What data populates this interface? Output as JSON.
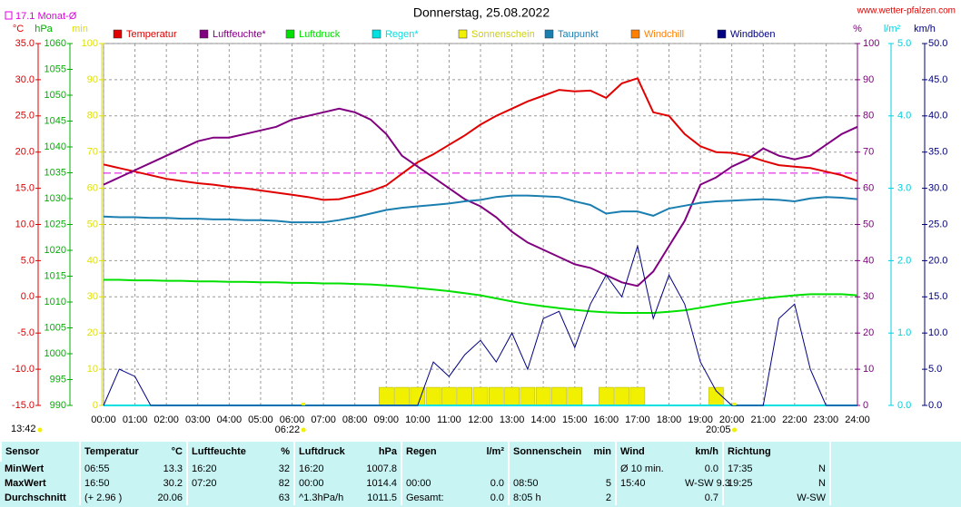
{
  "chart_data": {
    "type": "line",
    "title": "Donnerstag, 25.08.2022",
    "source": "www.wetter-pfalzen.com",
    "monthly_average": {
      "value": 17.1,
      "label": "17.1 Monat-Ø",
      "axis": "temp",
      "color": "#e000e0"
    },
    "sun_times": {
      "day_length": "13:42",
      "sunrise": "06:22",
      "sunset": "20:05"
    },
    "grid": true,
    "axes": {
      "temp": {
        "unit": "°C",
        "color": "#e00000",
        "lim": [
          -15,
          35
        ],
        "ticks": [
          {
            "value": 35,
            "label": "35.0"
          },
          {
            "value": 30,
            "label": "30.0"
          },
          {
            "value": 25,
            "label": "25.0"
          },
          {
            "value": 20,
            "label": "20.0"
          },
          {
            "value": 15,
            "label": "15.0"
          },
          {
            "value": 10,
            "label": "10.0"
          },
          {
            "value": 5,
            "label": "5.0"
          },
          {
            "value": 0,
            "label": "0.0"
          },
          {
            "value": -5,
            "label": "-5.0"
          },
          {
            "value": -10,
            "label": "-10.0"
          },
          {
            "value": -15,
            "label": "-15.0"
          }
        ]
      },
      "press": {
        "unit": "hPa",
        "color": "#00b000",
        "lim": [
          990,
          1060
        ],
        "ticks": [
          1060,
          1055,
          1050,
          1045,
          1040,
          1035,
          1030,
          1025,
          1020,
          1015,
          1010,
          1005,
          1000,
          995,
          990
        ]
      },
      "min": {
        "unit": "min",
        "color": "#e0e000",
        "lim": [
          0,
          100
        ],
        "ticks": [
          100,
          90,
          80,
          70,
          60,
          50,
          40,
          30,
          20,
          10,
          0
        ]
      },
      "hum": {
        "unit": "%",
        "color": "#800080",
        "lim": [
          0,
          100
        ],
        "ticks": [
          100,
          90,
          80,
          70,
          60,
          50,
          40,
          30,
          20,
          10,
          0
        ]
      },
      "rain": {
        "unit": "l/m²",
        "color": "#00d0e0",
        "lim": [
          0,
          5
        ],
        "ticks": [
          {
            "value": 5,
            "label": "5.0"
          },
          {
            "value": 4,
            "label": "4.0"
          },
          {
            "value": 3,
            "label": "3.0"
          },
          {
            "value": 2,
            "label": "2.0"
          },
          {
            "value": 1,
            "label": "1.0"
          },
          {
            "value": 0,
            "label": "0.0"
          }
        ]
      },
      "wind": {
        "unit": "km/h",
        "color": "#000080",
        "lim": [
          0,
          50
        ],
        "ticks": [
          {
            "value": 50,
            "label": "50.0"
          },
          {
            "value": 45,
            "label": "45.0"
          },
          {
            "value": 40,
            "label": "40.0"
          },
          {
            "value": 35,
            "label": "35.0"
          },
          {
            "value": 30,
            "label": "30.0"
          },
          {
            "value": 25,
            "label": "25.0"
          },
          {
            "value": 20,
            "label": "20.0"
          },
          {
            "value": 15,
            "label": "15.0"
          },
          {
            "value": 10,
            "label": "10.0"
          },
          {
            "value": 5,
            "label": "5.0"
          },
          {
            "value": 0,
            "label": "0.0"
          }
        ]
      }
    },
    "xlim": [
      "00:00",
      "24:00"
    ],
    "xticks": [
      "00:00",
      "01:00",
      "02:00",
      "03:00",
      "04:00",
      "05:00",
      "06:00",
      "07:00",
      "08:00",
      "09:00",
      "10:00",
      "11:00",
      "12:00",
      "13:00",
      "14:00",
      "15:00",
      "16:00",
      "17:00",
      "18:00",
      "19:00",
      "20:00",
      "21:00",
      "22:00",
      "23:00",
      "24:00"
    ],
    "x": [
      "00:00",
      "00:30",
      "01:00",
      "01:30",
      "02:00",
      "02:30",
      "03:00",
      "03:30",
      "04:00",
      "04:30",
      "05:00",
      "05:30",
      "06:00",
      "06:30",
      "07:00",
      "07:30",
      "08:00",
      "08:30",
      "09:00",
      "09:30",
      "10:00",
      "10:30",
      "11:00",
      "11:30",
      "12:00",
      "12:30",
      "13:00",
      "13:30",
      "14:00",
      "14:30",
      "15:00",
      "15:30",
      "16:00",
      "16:30",
      "17:00",
      "17:30",
      "18:00",
      "18:30",
      "19:00",
      "19:30",
      "20:00",
      "20:30",
      "21:00",
      "21:30",
      "22:00",
      "22:30",
      "23:00",
      "23:30",
      "24:00"
    ],
    "series": [
      {
        "name": "Temperatur",
        "color": "#e00000",
        "axis": "temp",
        "kind": "line",
        "values": [
          18.3,
          17.8,
          17.3,
          16.8,
          16.3,
          16.0,
          15.7,
          15.5,
          15.2,
          15.0,
          14.7,
          14.4,
          14.1,
          13.8,
          13.4,
          13.5,
          14.0,
          14.6,
          15.4,
          17.0,
          18.6,
          19.7,
          21.0,
          22.3,
          23.8,
          25.0,
          26.0,
          27.0,
          27.8,
          28.6,
          28.4,
          28.5,
          27.5,
          29.5,
          30.2,
          25.5,
          25.0,
          22.5,
          20.8,
          20.0,
          19.9,
          19.5,
          18.8,
          18.2,
          18.0,
          17.8,
          17.3,
          16.8,
          16.0
        ]
      },
      {
        "name": "Luftfeuchte*",
        "color": "#800080",
        "axis": "hum",
        "kind": "line",
        "values": [
          61,
          63,
          65,
          67,
          69,
          71,
          73,
          74,
          74,
          75,
          76,
          77,
          79,
          80,
          81,
          82,
          81,
          79,
          75,
          69,
          66,
          63,
          60,
          57,
          55,
          52,
          48,
          45,
          43,
          41,
          39,
          38,
          36,
          34,
          33,
          37,
          44,
          51,
          61,
          63,
          66,
          68,
          71,
          69,
          68,
          69,
          72,
          75,
          77
        ]
      },
      {
        "name": "Luftdruck",
        "color": "#00e000",
        "axis": "press",
        "kind": "line",
        "values": [
          1014.3,
          1014.3,
          1014.2,
          1014.2,
          1014.1,
          1014.1,
          1014.0,
          1014.0,
          1013.9,
          1013.9,
          1013.8,
          1013.8,
          1013.7,
          1013.7,
          1013.6,
          1013.6,
          1013.5,
          1013.4,
          1013.2,
          1013.0,
          1012.7,
          1012.4,
          1012.1,
          1011.7,
          1011.3,
          1010.7,
          1010.1,
          1009.6,
          1009.2,
          1008.8,
          1008.5,
          1008.2,
          1008.0,
          1007.9,
          1007.9,
          1007.9,
          1008.1,
          1008.4,
          1008.9,
          1009.4,
          1009.9,
          1010.3,
          1010.7,
          1011.0,
          1011.3,
          1011.5,
          1011.5,
          1011.5,
          1011.3
        ]
      },
      {
        "name": "Regen*",
        "color": "#00e0e0",
        "axis": "rain",
        "kind": "line",
        "values": [
          0,
          0,
          0,
          0,
          0,
          0,
          0,
          0,
          0,
          0,
          0,
          0,
          0,
          0,
          0,
          0,
          0,
          0,
          0,
          0,
          0,
          0,
          0,
          0,
          0,
          0,
          0,
          0,
          0,
          0,
          0,
          0,
          0,
          0,
          0,
          0,
          0,
          0,
          0,
          0,
          0,
          0,
          0,
          0,
          0,
          0,
          0,
          0,
          0
        ]
      },
      {
        "name": "Sonnenschein",
        "color": "#f0f000",
        "axis": "min",
        "kind": "bar",
        "values": [
          0,
          0,
          0,
          0,
          0,
          0,
          0,
          0,
          0,
          0,
          0,
          0,
          0,
          0,
          0,
          0,
          0,
          0,
          5,
          5,
          5,
          5,
          5,
          5,
          5,
          5,
          5,
          5,
          5,
          5,
          5,
          0,
          5,
          5,
          5,
          0,
          0,
          0,
          0,
          5,
          0,
          0,
          0,
          0,
          0,
          0,
          0,
          0,
          0
        ]
      },
      {
        "name": "Taupunkt",
        "color": "#1a7fb0",
        "axis": "temp",
        "kind": "line",
        "values": [
          11.1,
          11.0,
          11.0,
          10.9,
          10.9,
          10.8,
          10.8,
          10.7,
          10.7,
          10.6,
          10.6,
          10.5,
          10.3,
          10.3,
          10.3,
          10.6,
          11.0,
          11.5,
          12.0,
          12.3,
          12.5,
          12.7,
          12.9,
          13.2,
          13.4,
          13.8,
          14.0,
          14.0,
          13.9,
          13.8,
          13.2,
          12.7,
          11.5,
          11.8,
          11.8,
          11.2,
          12.2,
          12.6,
          13.0,
          13.2,
          13.3,
          13.4,
          13.5,
          13.4,
          13.2,
          13.6,
          13.8,
          13.7,
          13.5
        ]
      },
      {
        "name": "Windchill",
        "color": "#ff8000",
        "axis": "temp",
        "kind": "line"
      },
      {
        "name": "Windböen",
        "color": "#000080",
        "axis": "wind",
        "kind": "line",
        "values": [
          0,
          5,
          4,
          0,
          0,
          0,
          0,
          0,
          0,
          0,
          0,
          0,
          0,
          0,
          0,
          0,
          0,
          0,
          0,
          0,
          0,
          6,
          4,
          7,
          9,
          6,
          10,
          5,
          12,
          13,
          8,
          14,
          18,
          15,
          22,
          12,
          18,
          14,
          6,
          2,
          0,
          0,
          0,
          12,
          14,
          5,
          0,
          0,
          0
        ]
      }
    ]
  },
  "table": {
    "header": [
      "Sensor",
      "Temperatur",
      "°C",
      "Luftfeuchte",
      "%",
      "Luftdruck",
      "hPa",
      "Regen",
      "l/m²",
      "Sonnenschein",
      "min",
      "Wind",
      "km/h",
      "Richtung"
    ],
    "rows": [
      {
        "label": "MinWert",
        "temp": {
          "left": "06:55",
          "right": "13.3"
        },
        "hum": {
          "left": "16:20",
          "right": "32"
        },
        "press": {
          "left": "16:20",
          "right": "1007.8"
        },
        "wind": {
          "left": "Ø 10 min.",
          "right": "0.0"
        },
        "dir": {
          "left": "17:35",
          "right": "N"
        }
      },
      {
        "label": "MaxWert",
        "temp": {
          "left": "16:50",
          "right": "30.2"
        },
        "hum": {
          "left": "07:20",
          "right": "82"
        },
        "press": {
          "left": "00:00",
          "right": "1014.4"
        },
        "rain": {
          "left": "00:00",
          "right": "0.0"
        },
        "sun": {
          "left": "08:50",
          "right": "5"
        },
        "wind": {
          "left": "15:40",
          "right": "W-SW 9.3"
        },
        "dir": {
          "left": "19:25",
          "right": "N"
        }
      },
      {
        "label": "Durchschnitt",
        "temp": {
          "left": "(+ 2.96 )",
          "right": "20.06"
        },
        "hum": {
          "right": "63"
        },
        "press": {
          "left": "^1.3hPa/h",
          "right": "1011.5"
        },
        "rain": {
          "left": "Gesamt:",
          "right": "0.0"
        },
        "sun": {
          "left": "8:05 h",
          "right": "2"
        },
        "wind": {
          "right": "0.7"
        },
        "dir": {
          "right": "W-SW"
        }
      }
    ]
  }
}
